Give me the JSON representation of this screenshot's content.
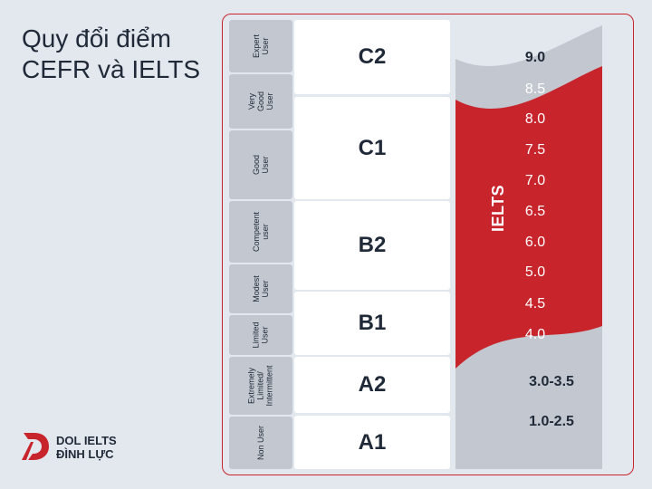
{
  "title": {
    "line1": "Quy đổi điểm",
    "line2": "CEFR và IELTS"
  },
  "brand": {
    "line1": "DOL IELTS",
    "line2": "ĐÌNH LỰC"
  },
  "colors": {
    "accent": "#c8242b",
    "panel_gray": "#c3c8d0",
    "cell_white": "#ffffff",
    "background": "#e3e7ee"
  },
  "user_labels": [
    {
      "id": "expert",
      "text": "Expert\nUser"
    },
    {
      "id": "very-good",
      "text": "Very\nGood\nUser"
    },
    {
      "id": "good",
      "text": "Good\nUser"
    },
    {
      "id": "competent",
      "text": "Competent\nuser"
    },
    {
      "id": "modest",
      "text": "Modest\nUser"
    },
    {
      "id": "limited",
      "text": "Limited\nUser"
    },
    {
      "id": "extremely-limited",
      "text": "Extremely\nLimited/\nIntermittent"
    },
    {
      "id": "non-user",
      "text": "Non User"
    }
  ],
  "cefr_levels": [
    "C2",
    "C1",
    "B2",
    "B1",
    "A2",
    "A1"
  ],
  "ielts_label": "IELTS",
  "ielts_scores": [
    "9.0",
    "8.5",
    "8.0",
    "7.5",
    "7.0",
    "6.5",
    "6.0",
    "5.0",
    "4.5",
    "4.0",
    "3.0-3.5",
    "1.0-2.5"
  ]
}
